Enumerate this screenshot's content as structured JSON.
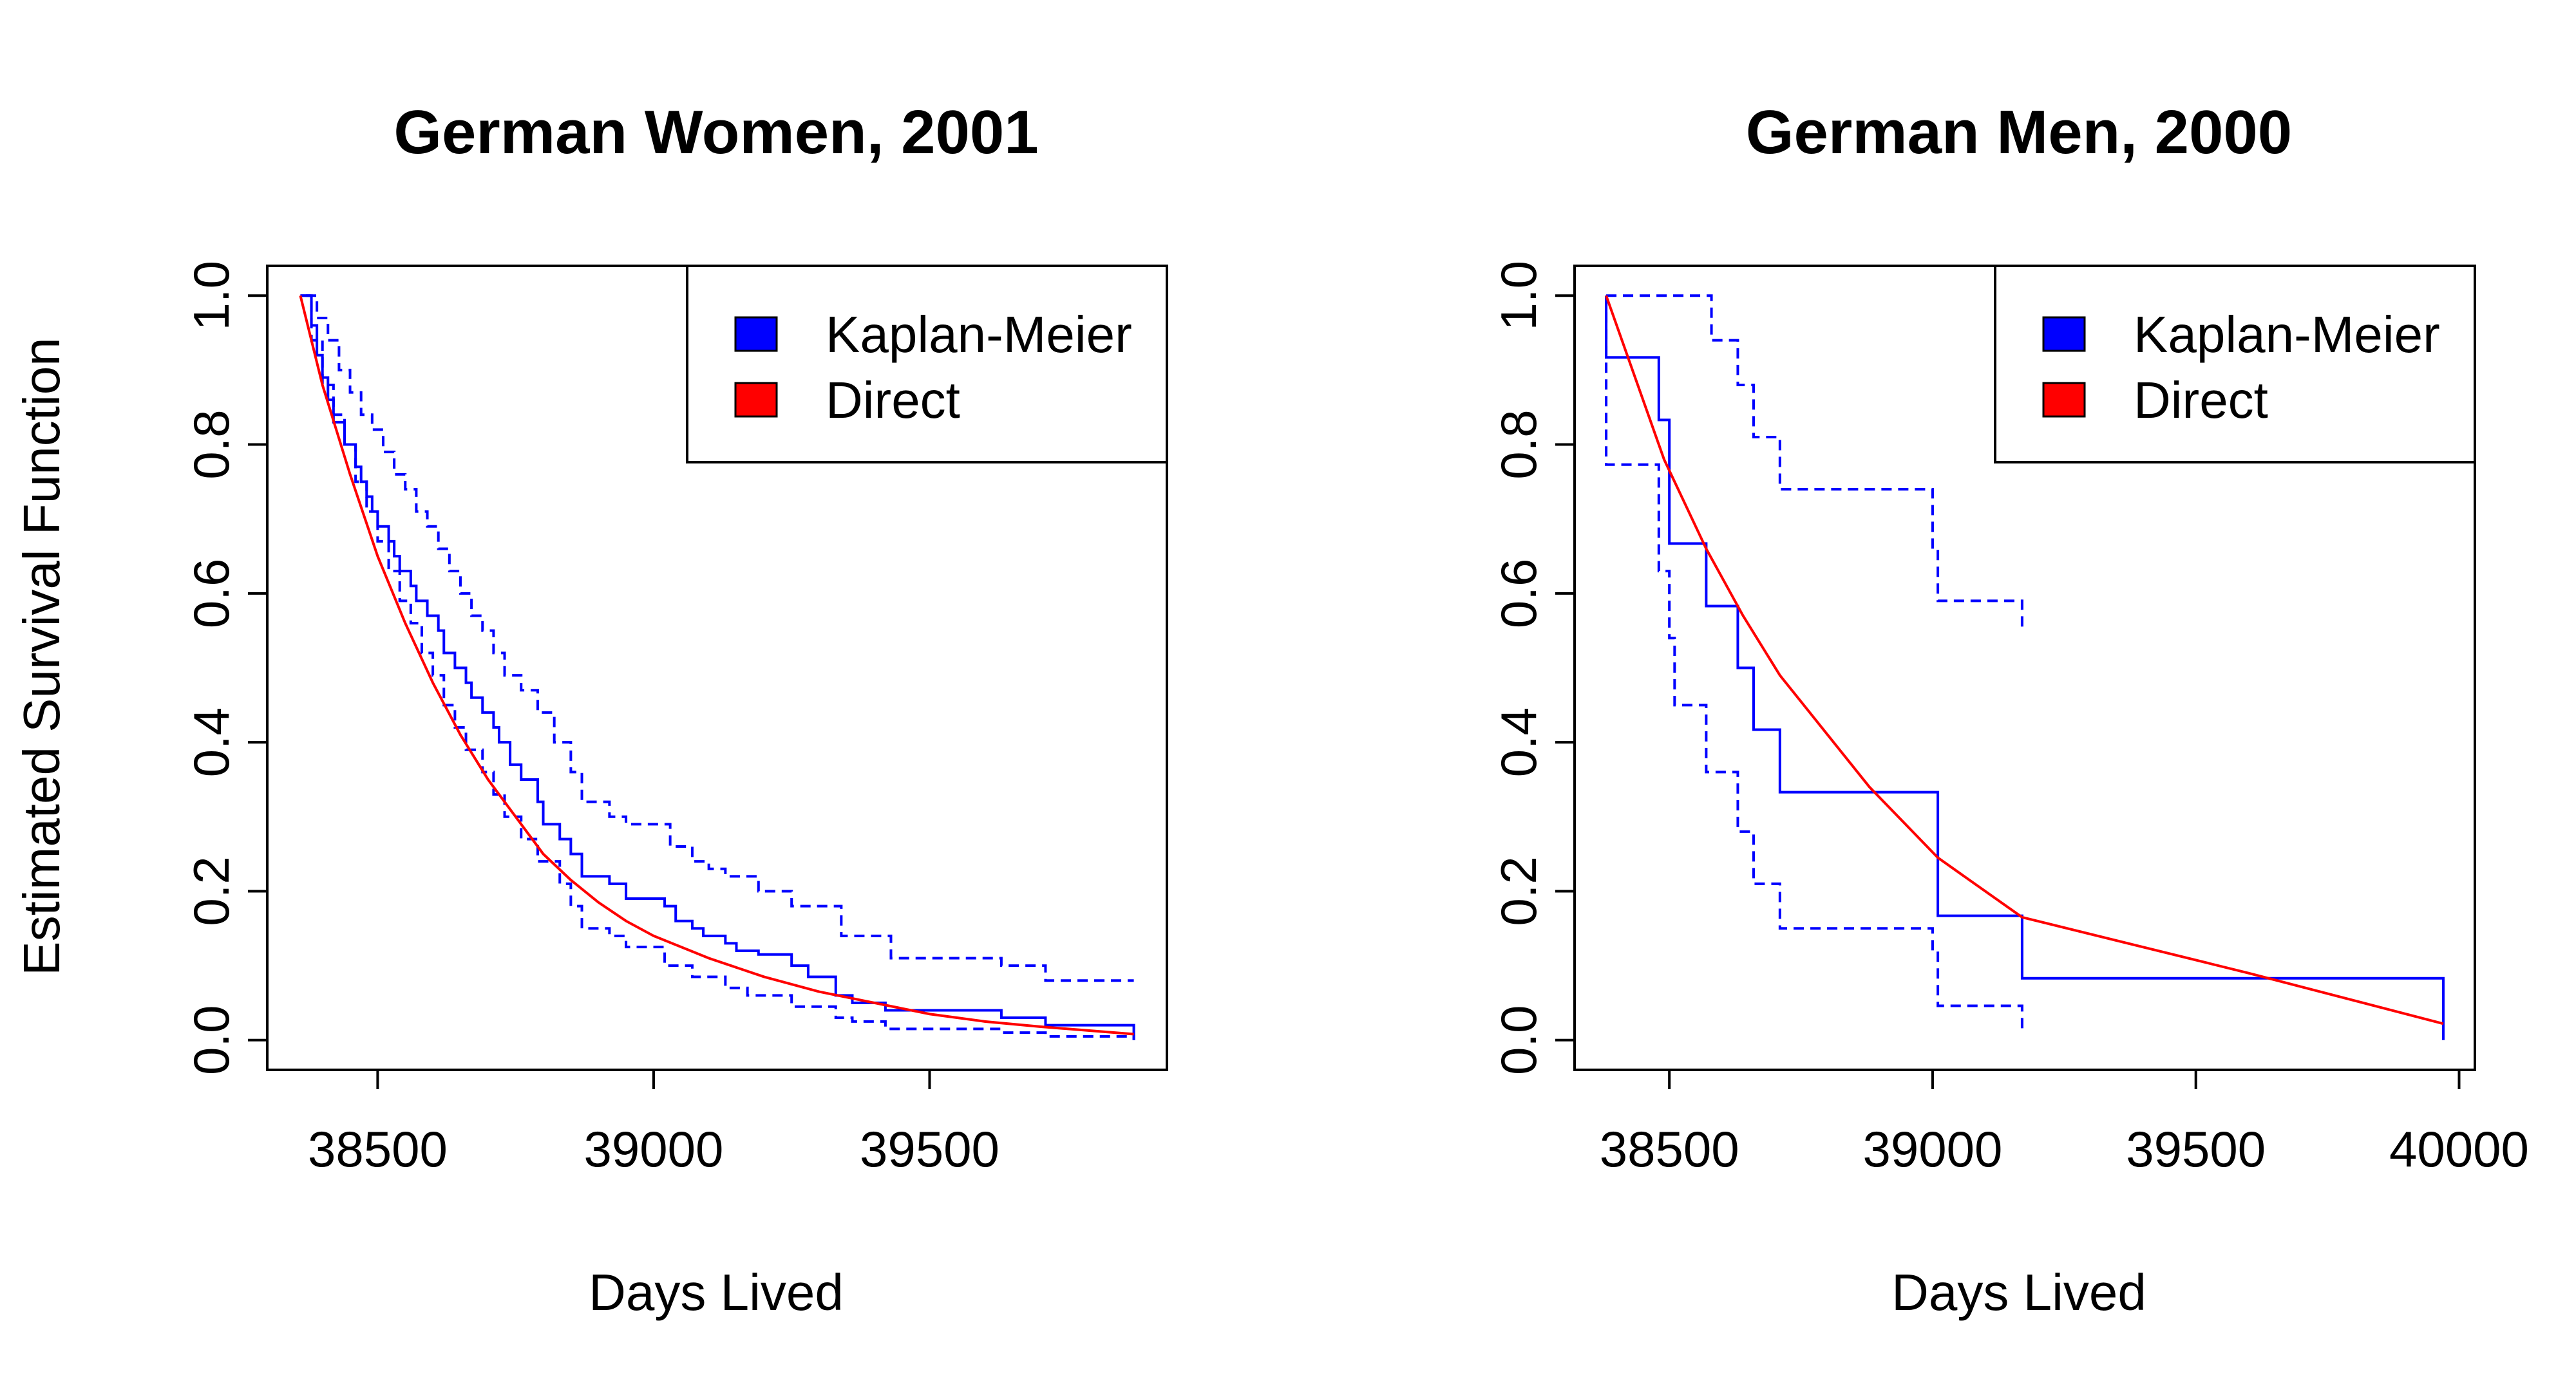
{
  "ylabel": "Estimated Survival Function",
  "chart_data": [
    {
      "type": "line",
      "title": "German Women, 2001",
      "xlabel": "Days Lived",
      "ylabel": "Estimated Survival Function",
      "xlim": [
        38300,
        39930
      ],
      "ylim": [
        -0.04,
        1.04
      ],
      "xticks": [
        38500,
        39000,
        39500
      ],
      "yticks": [
        0.0,
        0.2,
        0.4,
        0.6,
        0.8,
        1.0
      ],
      "legend": {
        "position": "top-right",
        "entries": [
          {
            "label": "Kaplan-Meier",
            "color": "#0000ff"
          },
          {
            "label": "Direct",
            "color": "#ff0000"
          }
        ]
      },
      "series": [
        {
          "name": "Kaplan-Meier",
          "style": "step",
          "color": "#0000ff",
          "x": [
            38360,
            38380,
            38390,
            38400,
            38410,
            38420,
            38440,
            38460,
            38470,
            38480,
            38490,
            38500,
            38520,
            38530,
            38540,
            38560,
            38570,
            38590,
            38610,
            38620,
            38640,
            38660,
            38670,
            38690,
            38710,
            38720,
            38740,
            38760,
            38790,
            38800,
            38830,
            38850,
            38870,
            38920,
            38950,
            39020,
            39040,
            39070,
            39090,
            39130,
            39150,
            39190,
            39250,
            39280,
            39330,
            39360,
            39420,
            39630,
            39710,
            39870
          ],
          "y": [
            1.0,
            0.96,
            0.92,
            0.89,
            0.86,
            0.83,
            0.8,
            0.77,
            0.75,
            0.73,
            0.71,
            0.69,
            0.67,
            0.65,
            0.63,
            0.61,
            0.59,
            0.57,
            0.55,
            0.52,
            0.5,
            0.48,
            0.46,
            0.44,
            0.42,
            0.4,
            0.37,
            0.35,
            0.32,
            0.29,
            0.27,
            0.25,
            0.22,
            0.21,
            0.19,
            0.18,
            0.16,
            0.15,
            0.14,
            0.13,
            0.12,
            0.115,
            0.1,
            0.085,
            0.06,
            0.05,
            0.04,
            0.03,
            0.02,
            0.0
          ]
        },
        {
          "name": "Kaplan-Meier upper",
          "style": "step-dashed",
          "color": "#0000ff",
          "x": [
            38370,
            38390,
            38410,
            38430,
            38450,
            38470,
            38490,
            38510,
            38530,
            38550,
            38570,
            38590,
            38610,
            38630,
            38650,
            38670,
            38690,
            38710,
            38730,
            38760,
            38790,
            38820,
            38850,
            38870,
            38920,
            38950,
            39030,
            39070,
            39100,
            39130,
            39190,
            39250,
            39340,
            39430,
            39630,
            39710,
            39870
          ],
          "y": [
            1.0,
            0.97,
            0.94,
            0.9,
            0.87,
            0.84,
            0.82,
            0.79,
            0.76,
            0.74,
            0.71,
            0.69,
            0.66,
            0.63,
            0.6,
            0.57,
            0.55,
            0.52,
            0.49,
            0.47,
            0.44,
            0.4,
            0.36,
            0.32,
            0.3,
            0.29,
            0.26,
            0.24,
            0.23,
            0.22,
            0.2,
            0.18,
            0.14,
            0.11,
            0.1,
            0.08,
            0.08
          ]
        },
        {
          "name": "Kaplan-Meier lower",
          "style": "step-dashed",
          "color": "#0000ff",
          "x": [
            38360,
            38380,
            38400,
            38420,
            38440,
            38460,
            38480,
            38500,
            38520,
            38540,
            38560,
            38580,
            38600,
            38620,
            38640,
            38660,
            38690,
            38710,
            38730,
            38760,
            38790,
            38830,
            38850,
            38870,
            38920,
            38950,
            39020,
            39070,
            39130,
            39170,
            39250,
            39330,
            39360,
            39420,
            39630,
            39710,
            39870
          ],
          "y": [
            1.0,
            0.94,
            0.88,
            0.84,
            0.8,
            0.75,
            0.71,
            0.67,
            0.63,
            0.59,
            0.56,
            0.52,
            0.49,
            0.45,
            0.42,
            0.39,
            0.36,
            0.33,
            0.3,
            0.27,
            0.24,
            0.21,
            0.18,
            0.15,
            0.14,
            0.125,
            0.1,
            0.085,
            0.07,
            0.06,
            0.045,
            0.03,
            0.025,
            0.015,
            0.01,
            0.005,
            0.0
          ]
        },
        {
          "name": "Direct",
          "style": "line",
          "color": "#ff0000",
          "x": [
            38360,
            38400,
            38450,
            38500,
            38550,
            38600,
            38650,
            38700,
            38750,
            38800,
            38850,
            38900,
            38950,
            39000,
            39100,
            39200,
            39300,
            39400,
            39500,
            39600,
            39700,
            39870
          ],
          "y": [
            1.0,
            0.88,
            0.76,
            0.65,
            0.56,
            0.48,
            0.41,
            0.35,
            0.3,
            0.25,
            0.215,
            0.185,
            0.16,
            0.14,
            0.11,
            0.085,
            0.065,
            0.05,
            0.035,
            0.025,
            0.018,
            0.008
          ]
        }
      ]
    },
    {
      "type": "line",
      "title": "German Men, 2000",
      "xlabel": "Days Lived",
      "ylabel": "",
      "xlim": [
        38320,
        40030
      ],
      "ylim": [
        -0.04,
        1.04
      ],
      "xticks": [
        38500,
        39000,
        39500,
        40000
      ],
      "yticks": [
        0.0,
        0.2,
        0.4,
        0.6,
        0.8,
        1.0
      ],
      "legend": {
        "position": "top-right",
        "entries": [
          {
            "label": "Kaplan-Meier",
            "color": "#0000ff"
          },
          {
            "label": "Direct",
            "color": "#ff0000"
          }
        ]
      },
      "series": [
        {
          "name": "Kaplan-Meier",
          "style": "step",
          "color": "#0000ff",
          "x": [
            38380,
            38480,
            38500,
            38570,
            38630,
            38660,
            38710,
            39010,
            39170,
            39970
          ],
          "y": [
            0.917,
            0.833,
            0.667,
            0.583,
            0.5,
            0.417,
            0.333,
            0.167,
            0.083,
            0.0
          ]
        },
        {
          "name": "Kaplan-Meier upper",
          "style": "step-dashed",
          "color": "#0000ff",
          "x": [
            38380,
            38580,
            38630,
            38660,
            38710,
            39000,
            39010,
            39170
          ],
          "y": [
            1.0,
            0.94,
            0.88,
            0.81,
            0.74,
            0.66,
            0.59,
            0.55
          ]
        },
        {
          "name": "Kaplan-Meier lower",
          "style": "step-dashed",
          "color": "#0000ff",
          "x": [
            38380,
            38480,
            38500,
            38510,
            38570,
            38630,
            38660,
            38710,
            39000,
            39010,
            39170
          ],
          "y": [
            0.773,
            0.63,
            0.54,
            0.45,
            0.36,
            0.28,
            0.21,
            0.15,
            0.12,
            0.046,
            0.01
          ]
        },
        {
          "name": "Direct",
          "style": "line",
          "color": "#ff0000",
          "x": [
            38380,
            38490,
            38570,
            38640,
            38710,
            38880,
            39010,
            39170,
            39600,
            39970
          ],
          "y": [
            1.0,
            0.78,
            0.66,
            0.57,
            0.49,
            0.34,
            0.245,
            0.165,
            0.09,
            0.022
          ]
        }
      ]
    }
  ]
}
